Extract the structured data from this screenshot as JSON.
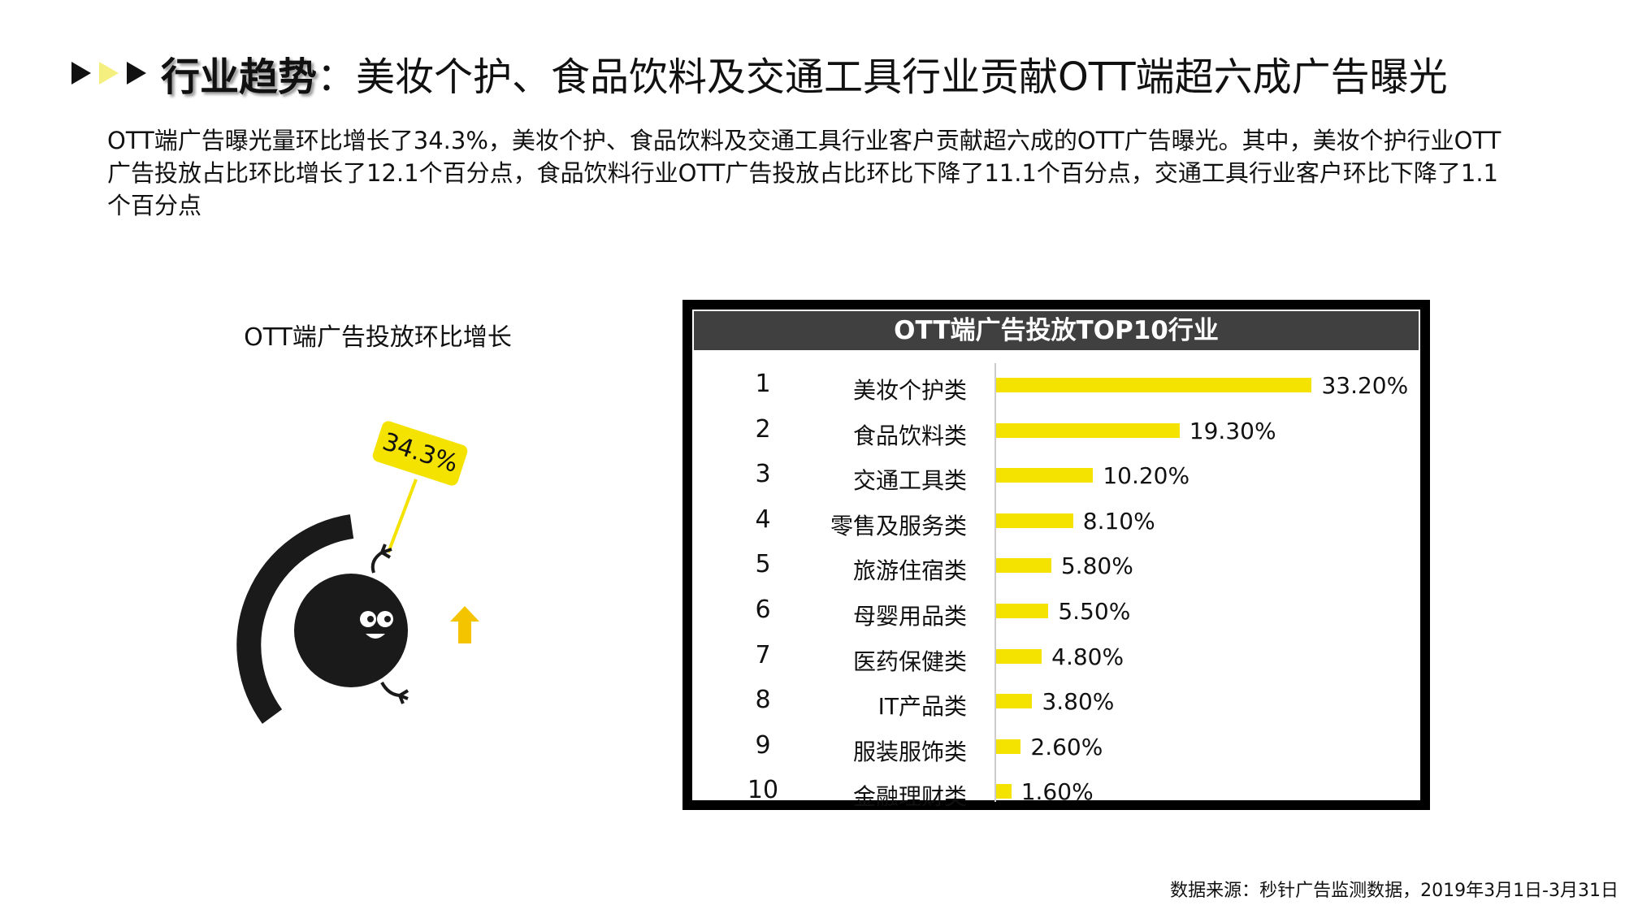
{
  "title": {
    "bold": "行业趋势",
    "rest": "：美妆个护、食品饮料及交通工具行业贡献OTT端超六成广告曝光"
  },
  "paragraph": "OTT端广告曝光量环比增长了34.3%，美妆个护、食品饮料及交通工具行业客户贡献超六成的OTT广告曝光。其中，美妆个护行业OTT广告投放占比环比增长了12.1个百分点，食品饮料行业OTT广告投放占比环比下降了11.1个百分点，交通工具行业客户环比下降了1.1个百分点",
  "left_panel": {
    "title": "OTT端广告投放环比增长",
    "growth_label": "34.3%",
    "growth": 34.3,
    "trend_icon": "arrow-up-icon"
  },
  "colors": {
    "bar": "#f4e200",
    "header": "#404040",
    "frame": "#000000",
    "arrow": "#f5c400"
  },
  "chart_data": {
    "type": "bar",
    "orientation": "horizontal",
    "title": "OTT端广告投放TOP10行业",
    "ranks": [
      "1",
      "2",
      "3",
      "4",
      "5",
      "6",
      "7",
      "8",
      "9",
      "10"
    ],
    "categories": [
      "美妆个护类",
      "食品饮料类",
      "交通工具类",
      "零售及服务类",
      "旅游住宿类",
      "母婴用品类",
      "医药保健类",
      "IT产品类",
      "服装服饰类",
      "金融理财类"
    ],
    "values": [
      33.2,
      19.3,
      10.2,
      8.1,
      5.8,
      5.5,
      4.8,
      3.8,
      2.6,
      1.6
    ],
    "labels": [
      "33.20%",
      "19.30%",
      "10.20%",
      "8.10%",
      "5.80%",
      "5.50%",
      "4.80%",
      "3.80%",
      "2.60%",
      "1.60%"
    ],
    "grid": false
  },
  "footer": "数据来源：秒针广告监测数据，2019年3月1日-3月31日"
}
